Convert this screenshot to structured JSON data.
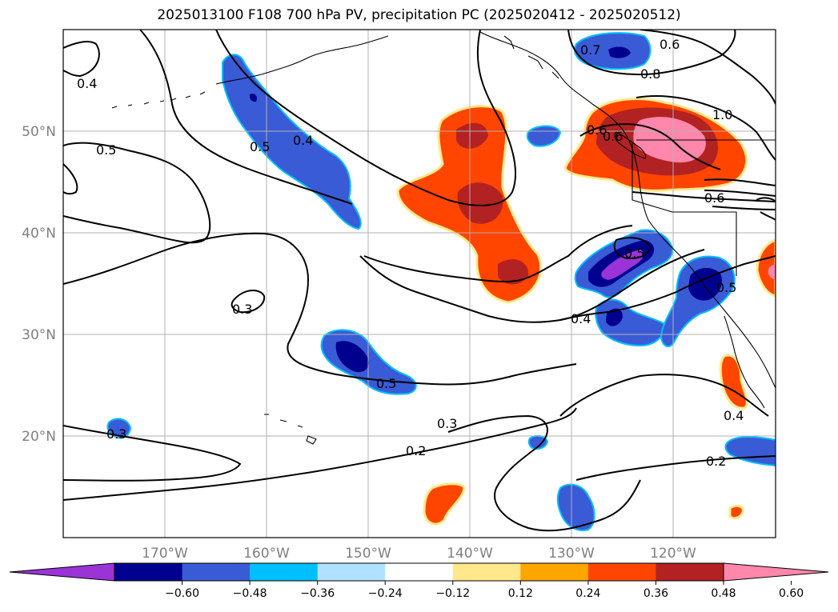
{
  "title": "2025013100 F108 700 hPa PV, precipitation PC (2025020412 - 2025020512)",
  "map": {
    "projection": "equirectangular",
    "lon_range": [
      -180,
      -110
    ],
    "lat_range": [
      10,
      60
    ],
    "gridlines": true,
    "lon_labels": [
      "170°W",
      "160°W",
      "150°W",
      "140°W",
      "130°W",
      "120°W"
    ],
    "lat_labels": [
      "50°N",
      "40°N",
      "30°N",
      "20°N"
    ],
    "contour_labels": [
      "0.4",
      "0.5",
      "0.4",
      "0.5",
      "0.3",
      "0.5",
      "0.4",
      "0.5",
      "0.3",
      "0.2",
      "0.3",
      "0.7",
      "0.6",
      "0.8",
      "1.0",
      "0.6",
      "0.6",
      "0.5",
      "0.6",
      "0.4",
      "0.2"
    ]
  },
  "colorbar": {
    "extend": "both",
    "ticks": [
      "−0.60",
      "−0.48",
      "−0.36",
      "−0.24",
      "−0.12",
      "0.12",
      "0.24",
      "0.36",
      "0.48",
      "0.60"
    ],
    "colors": [
      "#9a34d6",
      "#00008f",
      "#3a5bd6",
      "#00bfff",
      "#b0e2ff",
      "#ffffff",
      "#ffe88c",
      "#ffa500",
      "#ff4500",
      "#b22222",
      "#ff87ab"
    ]
  }
}
